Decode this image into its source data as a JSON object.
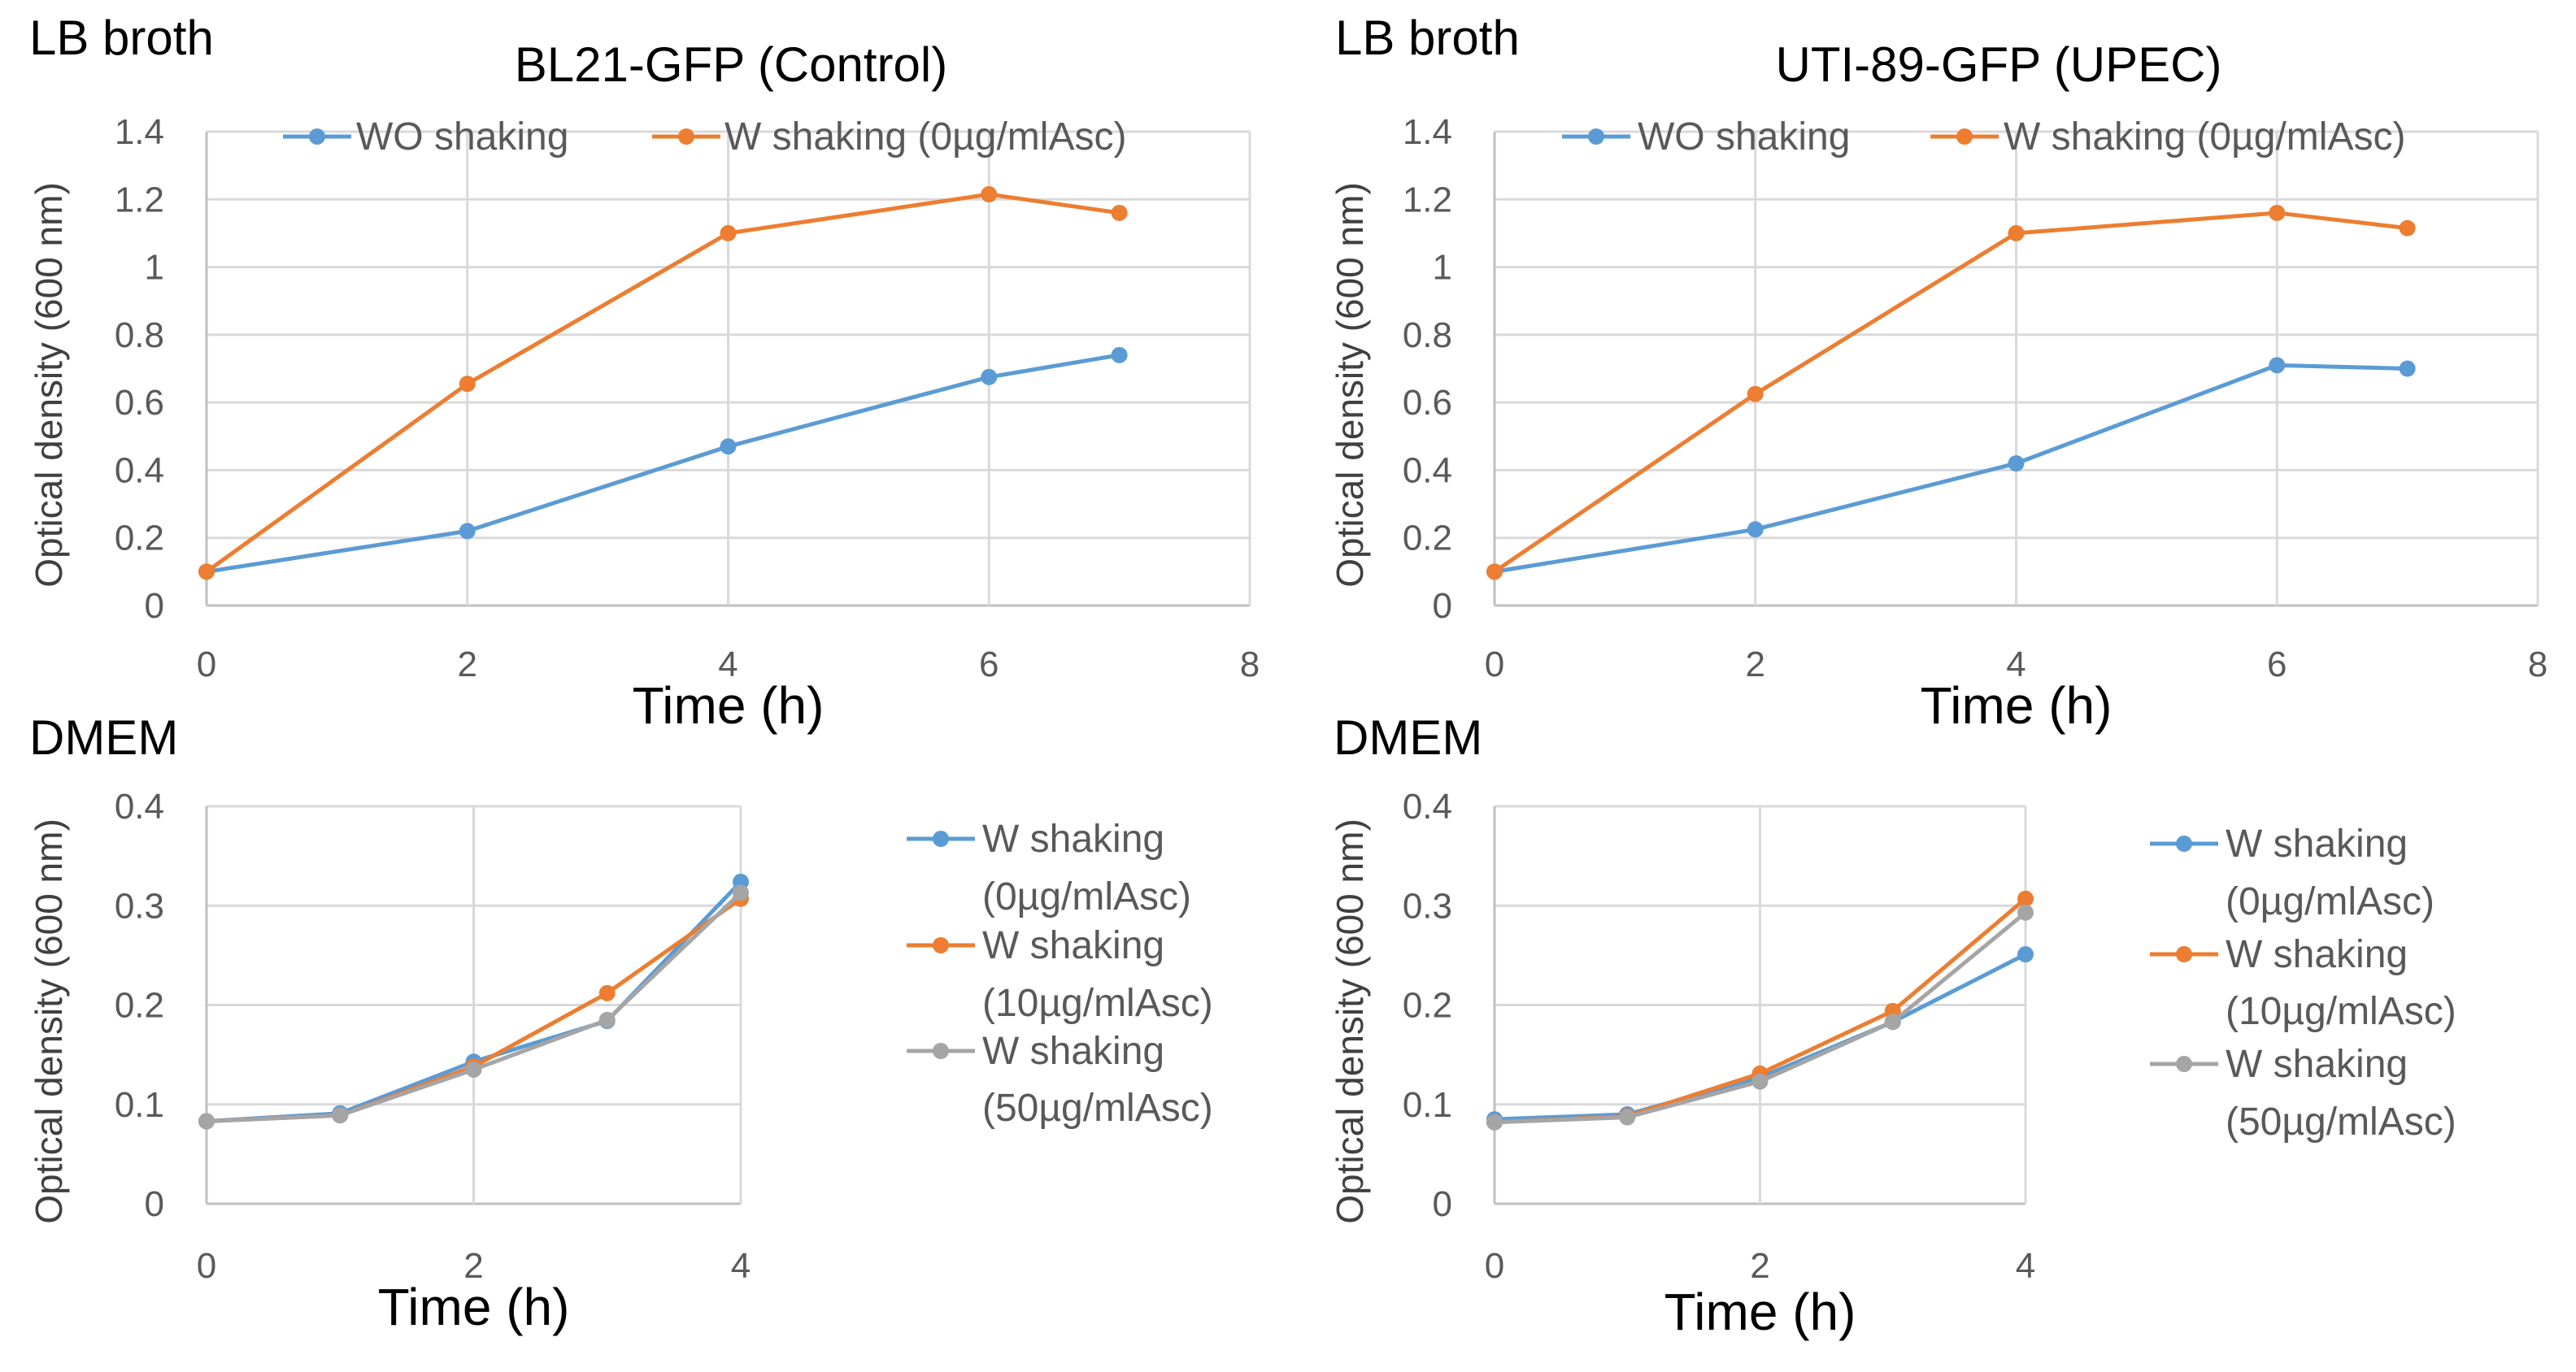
{
  "colors": {
    "blue": "#5B9BD5",
    "orange": "#ED7D31",
    "gray": "#A5A5A5"
  },
  "chart_data": [
    {
      "type": "line",
      "corner_label": "LB broth",
      "title": "BL21-GFP (Control)",
      "xlabel": "Time (h)",
      "ylabel": "Optical density (600 nm)",
      "xlim": [
        0,
        8
      ],
      "ylim": [
        0,
        1.4
      ],
      "xticks": [
        0,
        2,
        4,
        6,
        8
      ],
      "yticks": [
        0,
        0.2,
        0.4,
        0.6,
        0.8,
        1,
        1.2,
        1.4
      ],
      "grid": true,
      "legend_position": "top",
      "x": [
        0,
        2,
        4,
        6,
        7
      ],
      "series": [
        {
          "name": "WO shaking",
          "color": "blue",
          "values": [
            0.1,
            0.22,
            0.47,
            0.675,
            0.74
          ]
        },
        {
          "name": "W shaking (0µg/mlAsc)",
          "color": "orange",
          "values": [
            0.1,
            0.655,
            1.1,
            1.215,
            1.16
          ]
        }
      ]
    },
    {
      "type": "line",
      "corner_label": "LB broth",
      "title": "UTI-89-GFP (UPEC)",
      "xlabel": "Time (h)",
      "ylabel": "Optical density (600 nm)",
      "xlim": [
        0,
        8
      ],
      "ylim": [
        0,
        1.4
      ],
      "xticks": [
        0,
        2,
        4,
        6,
        8
      ],
      "yticks": [
        0,
        0.2,
        0.4,
        0.6,
        0.8,
        1,
        1.2,
        1.4
      ],
      "grid": true,
      "legend_position": "top",
      "x": [
        0,
        2,
        4,
        6,
        7
      ],
      "series": [
        {
          "name": "WO shaking",
          "color": "blue",
          "values": [
            0.1,
            0.225,
            0.42,
            0.71,
            0.7
          ]
        },
        {
          "name": "W shaking (0µg/mlAsc)",
          "color": "orange",
          "values": [
            0.1,
            0.625,
            1.1,
            1.16,
            1.115
          ]
        }
      ]
    },
    {
      "type": "line",
      "corner_label": "DMEM",
      "title": "",
      "xlabel": "Time (h)",
      "ylabel": "Optical density (600 nm)",
      "xlim": [
        0,
        4
      ],
      "ylim": [
        0,
        0.4
      ],
      "xticks": [
        0,
        2,
        4
      ],
      "yticks": [
        0,
        0.1,
        0.2,
        0.3,
        0.4
      ],
      "grid": true,
      "legend_position": "right",
      "x": [
        0,
        1,
        2,
        3,
        4
      ],
      "series": [
        {
          "name": "W shaking (0µg/mlAsc)",
          "legend_lines": [
            "W shaking",
            "(0µg/mlAsc)"
          ],
          "color": "blue",
          "values": [
            0.083,
            0.091,
            0.143,
            0.184,
            0.324
          ]
        },
        {
          "name": "W shaking (10µg/mlAsc)",
          "legend_lines": [
            "W shaking",
            "(10µg/mlAsc)"
          ],
          "color": "orange",
          "values": [
            0.083,
            0.089,
            0.138,
            0.212,
            0.307
          ]
        },
        {
          "name": "W shaking (50µg/mlAsc)",
          "legend_lines": [
            "W shaking",
            "(50µg/mlAsc)"
          ],
          "color": "gray",
          "values": [
            0.083,
            0.089,
            0.135,
            0.185,
            0.313
          ]
        }
      ]
    },
    {
      "type": "line",
      "corner_label": "DMEM",
      "title": "",
      "xlabel": "Time (h)",
      "ylabel": "Optical density (600 nm)",
      "xlim": [
        0,
        4
      ],
      "ylim": [
        0,
        0.4
      ],
      "xticks": [
        0,
        2,
        4
      ],
      "yticks": [
        0,
        0.1,
        0.2,
        0.3,
        0.4
      ],
      "grid": true,
      "legend_position": "right",
      "x": [
        0,
        1,
        2,
        3,
        4
      ],
      "series": [
        {
          "name": "W shaking (0µg/mlAsc)",
          "legend_lines": [
            "W shaking",
            "(0µg/mlAsc)"
          ],
          "color": "blue",
          "values": [
            0.085,
            0.09,
            0.127,
            0.183,
            0.251
          ]
        },
        {
          "name": "W shaking (10µg/mlAsc)",
          "legend_lines": [
            "W shaking",
            "(10µg/mlAsc)"
          ],
          "color": "orange",
          "values": [
            0.082,
            0.088,
            0.131,
            0.194,
            0.307
          ]
        },
        {
          "name": "W shaking (50µg/mlAsc)",
          "legend_lines": [
            "W shaking",
            "(50µg/mlAsc)"
          ],
          "color": "gray",
          "values": [
            0.082,
            0.087,
            0.123,
            0.183,
            0.293
          ]
        }
      ]
    }
  ]
}
